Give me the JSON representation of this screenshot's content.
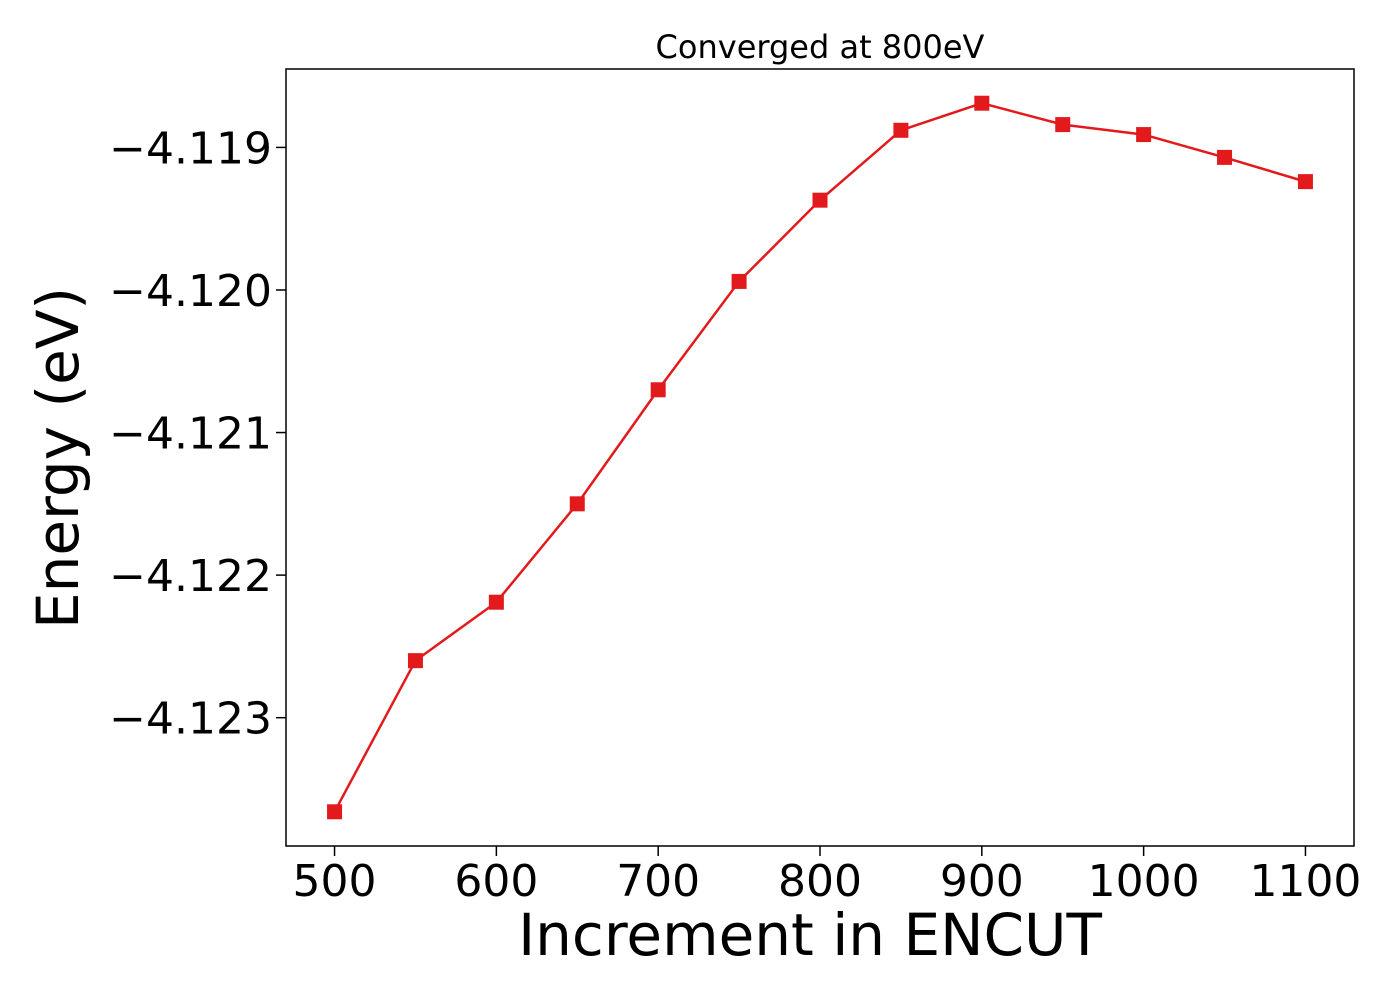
{
  "chart_data": {
    "type": "line",
    "title": "Converged at 800eV",
    "xlabel": "Increment in ENCUT",
    "ylabel": "Energy (eV)",
    "x": [
      500,
      550,
      600,
      650,
      700,
      750,
      800,
      850,
      900,
      950,
      1000,
      1050,
      1100
    ],
    "series": [
      {
        "values": [
          -4.12366,
          -4.1226,
          -4.12219,
          -4.1215,
          -4.1207,
          -4.11994,
          -4.11937,
          -4.11888,
          -4.11869,
          -4.11884,
          -4.11891,
          -4.11907,
          -4.11924
        ],
        "color": "#e31a1c",
        "marker": "square"
      }
    ],
    "xticks": [
      500,
      600,
      700,
      800,
      900,
      1000,
      1100
    ],
    "xtick_labels": [
      "500",
      "600",
      "700",
      "800",
      "900",
      "1000",
      "1100"
    ],
    "yticks": [
      -4.123,
      -4.122,
      -4.121,
      -4.12,
      -4.119
    ],
    "ytick_labels": [
      "−4.123",
      "−4.122",
      "−4.121",
      "−4.120",
      "−4.119"
    ],
    "xlim": [
      470,
      1130
    ],
    "ylim": [
      -4.1239,
      -4.11845
    ],
    "grid": false,
    "legend": "none"
  }
}
